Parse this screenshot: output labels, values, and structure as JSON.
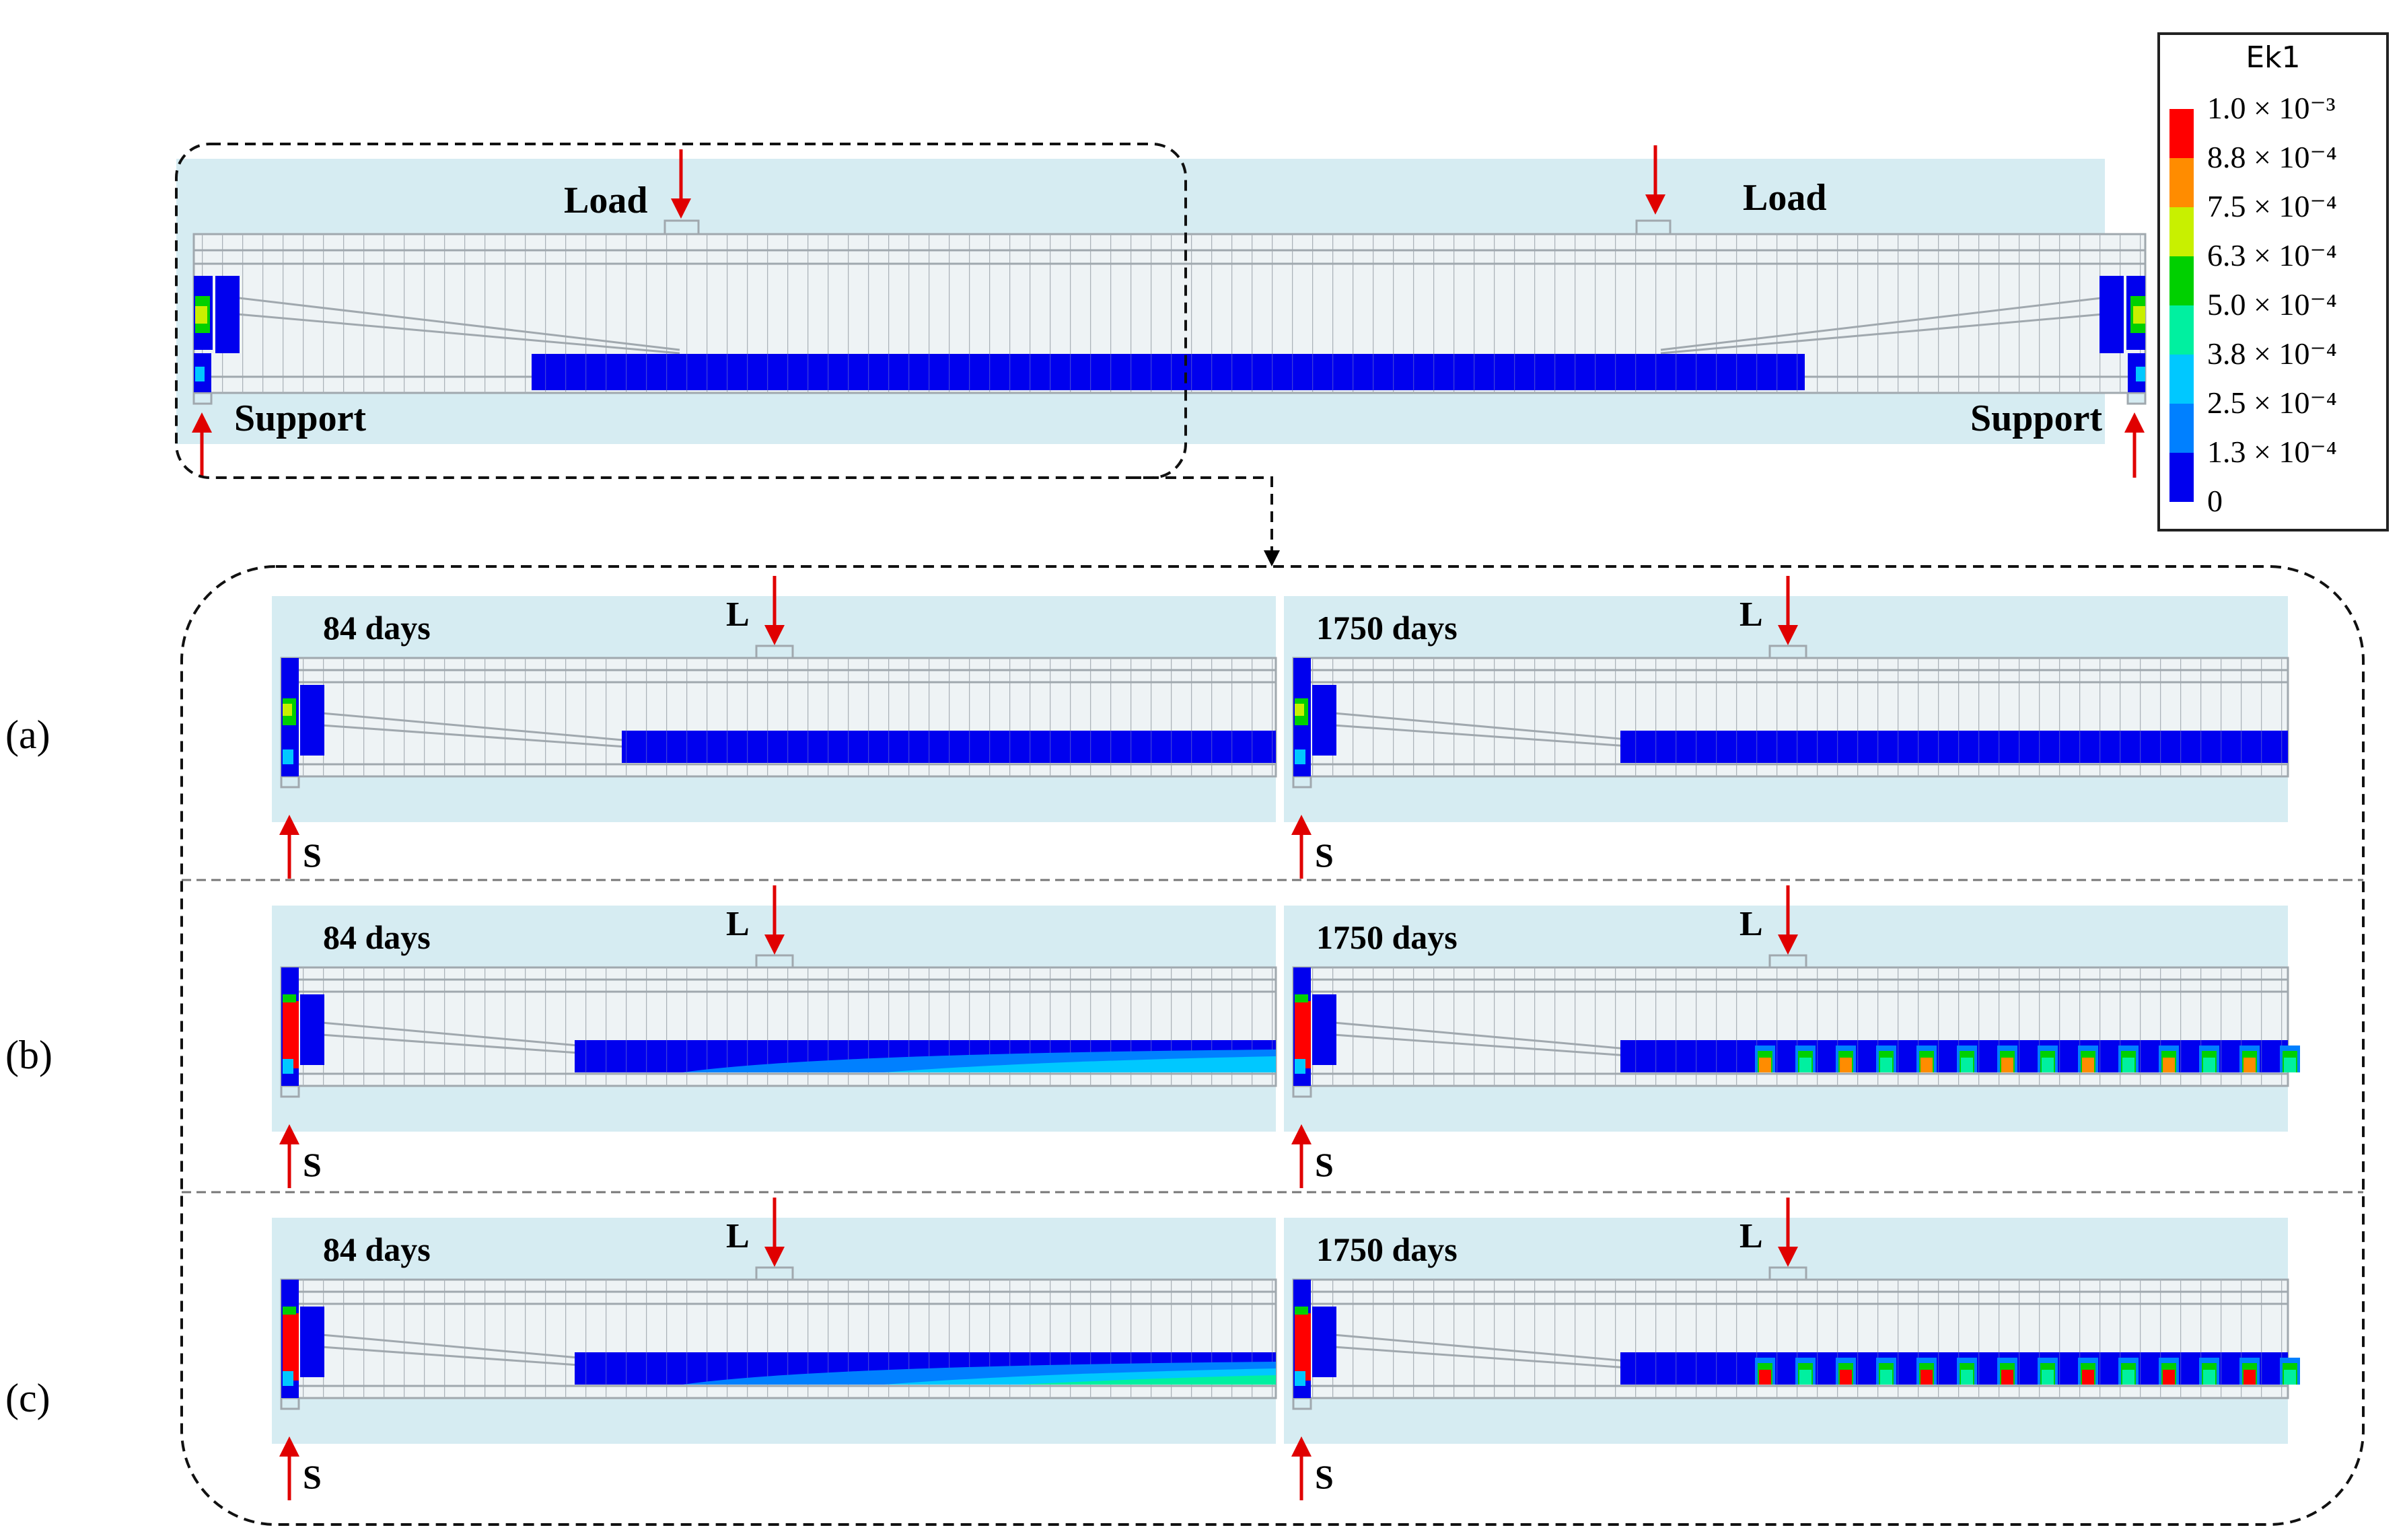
{
  "legend": {
    "title": "Ek1",
    "entries": [
      "1.0 × 10⁻³",
      "8.8 × 10⁻⁴",
      "7.5 × 10⁻⁴",
      "6.3 × 10⁻⁴",
      "5.0 × 10⁻⁴",
      "3.8 × 10⁻⁴",
      "2.5 × 10⁻⁴",
      "1.3 × 10⁻⁴",
      "0"
    ],
    "colors": [
      "#ff0000",
      "#ff8c00",
      "#c8f000",
      "#00d000",
      "#00f0a0",
      "#00c8ff",
      "#0080ff",
      "#0000ee"
    ]
  },
  "top_beam": {
    "load_left": "Load",
    "load_right": "Load",
    "support_left": "Support",
    "support_right": "Support"
  },
  "rows": [
    {
      "label": "(a)",
      "panels": [
        {
          "time": "84 days",
          "load": "L",
          "support": "S"
        },
        {
          "time": "1750 days",
          "load": "L",
          "support": "S"
        }
      ]
    },
    {
      "label": "(b)",
      "panels": [
        {
          "time": "84 days",
          "load": "L",
          "support": "S"
        },
        {
          "time": "1750 days",
          "load": "L",
          "support": "S"
        }
      ]
    },
    {
      "label": "(c)",
      "panels": [
        {
          "time": "84 days",
          "load": "L",
          "support": "S"
        },
        {
          "time": "1750 days",
          "load": "L",
          "support": "S"
        }
      ]
    }
  ]
}
